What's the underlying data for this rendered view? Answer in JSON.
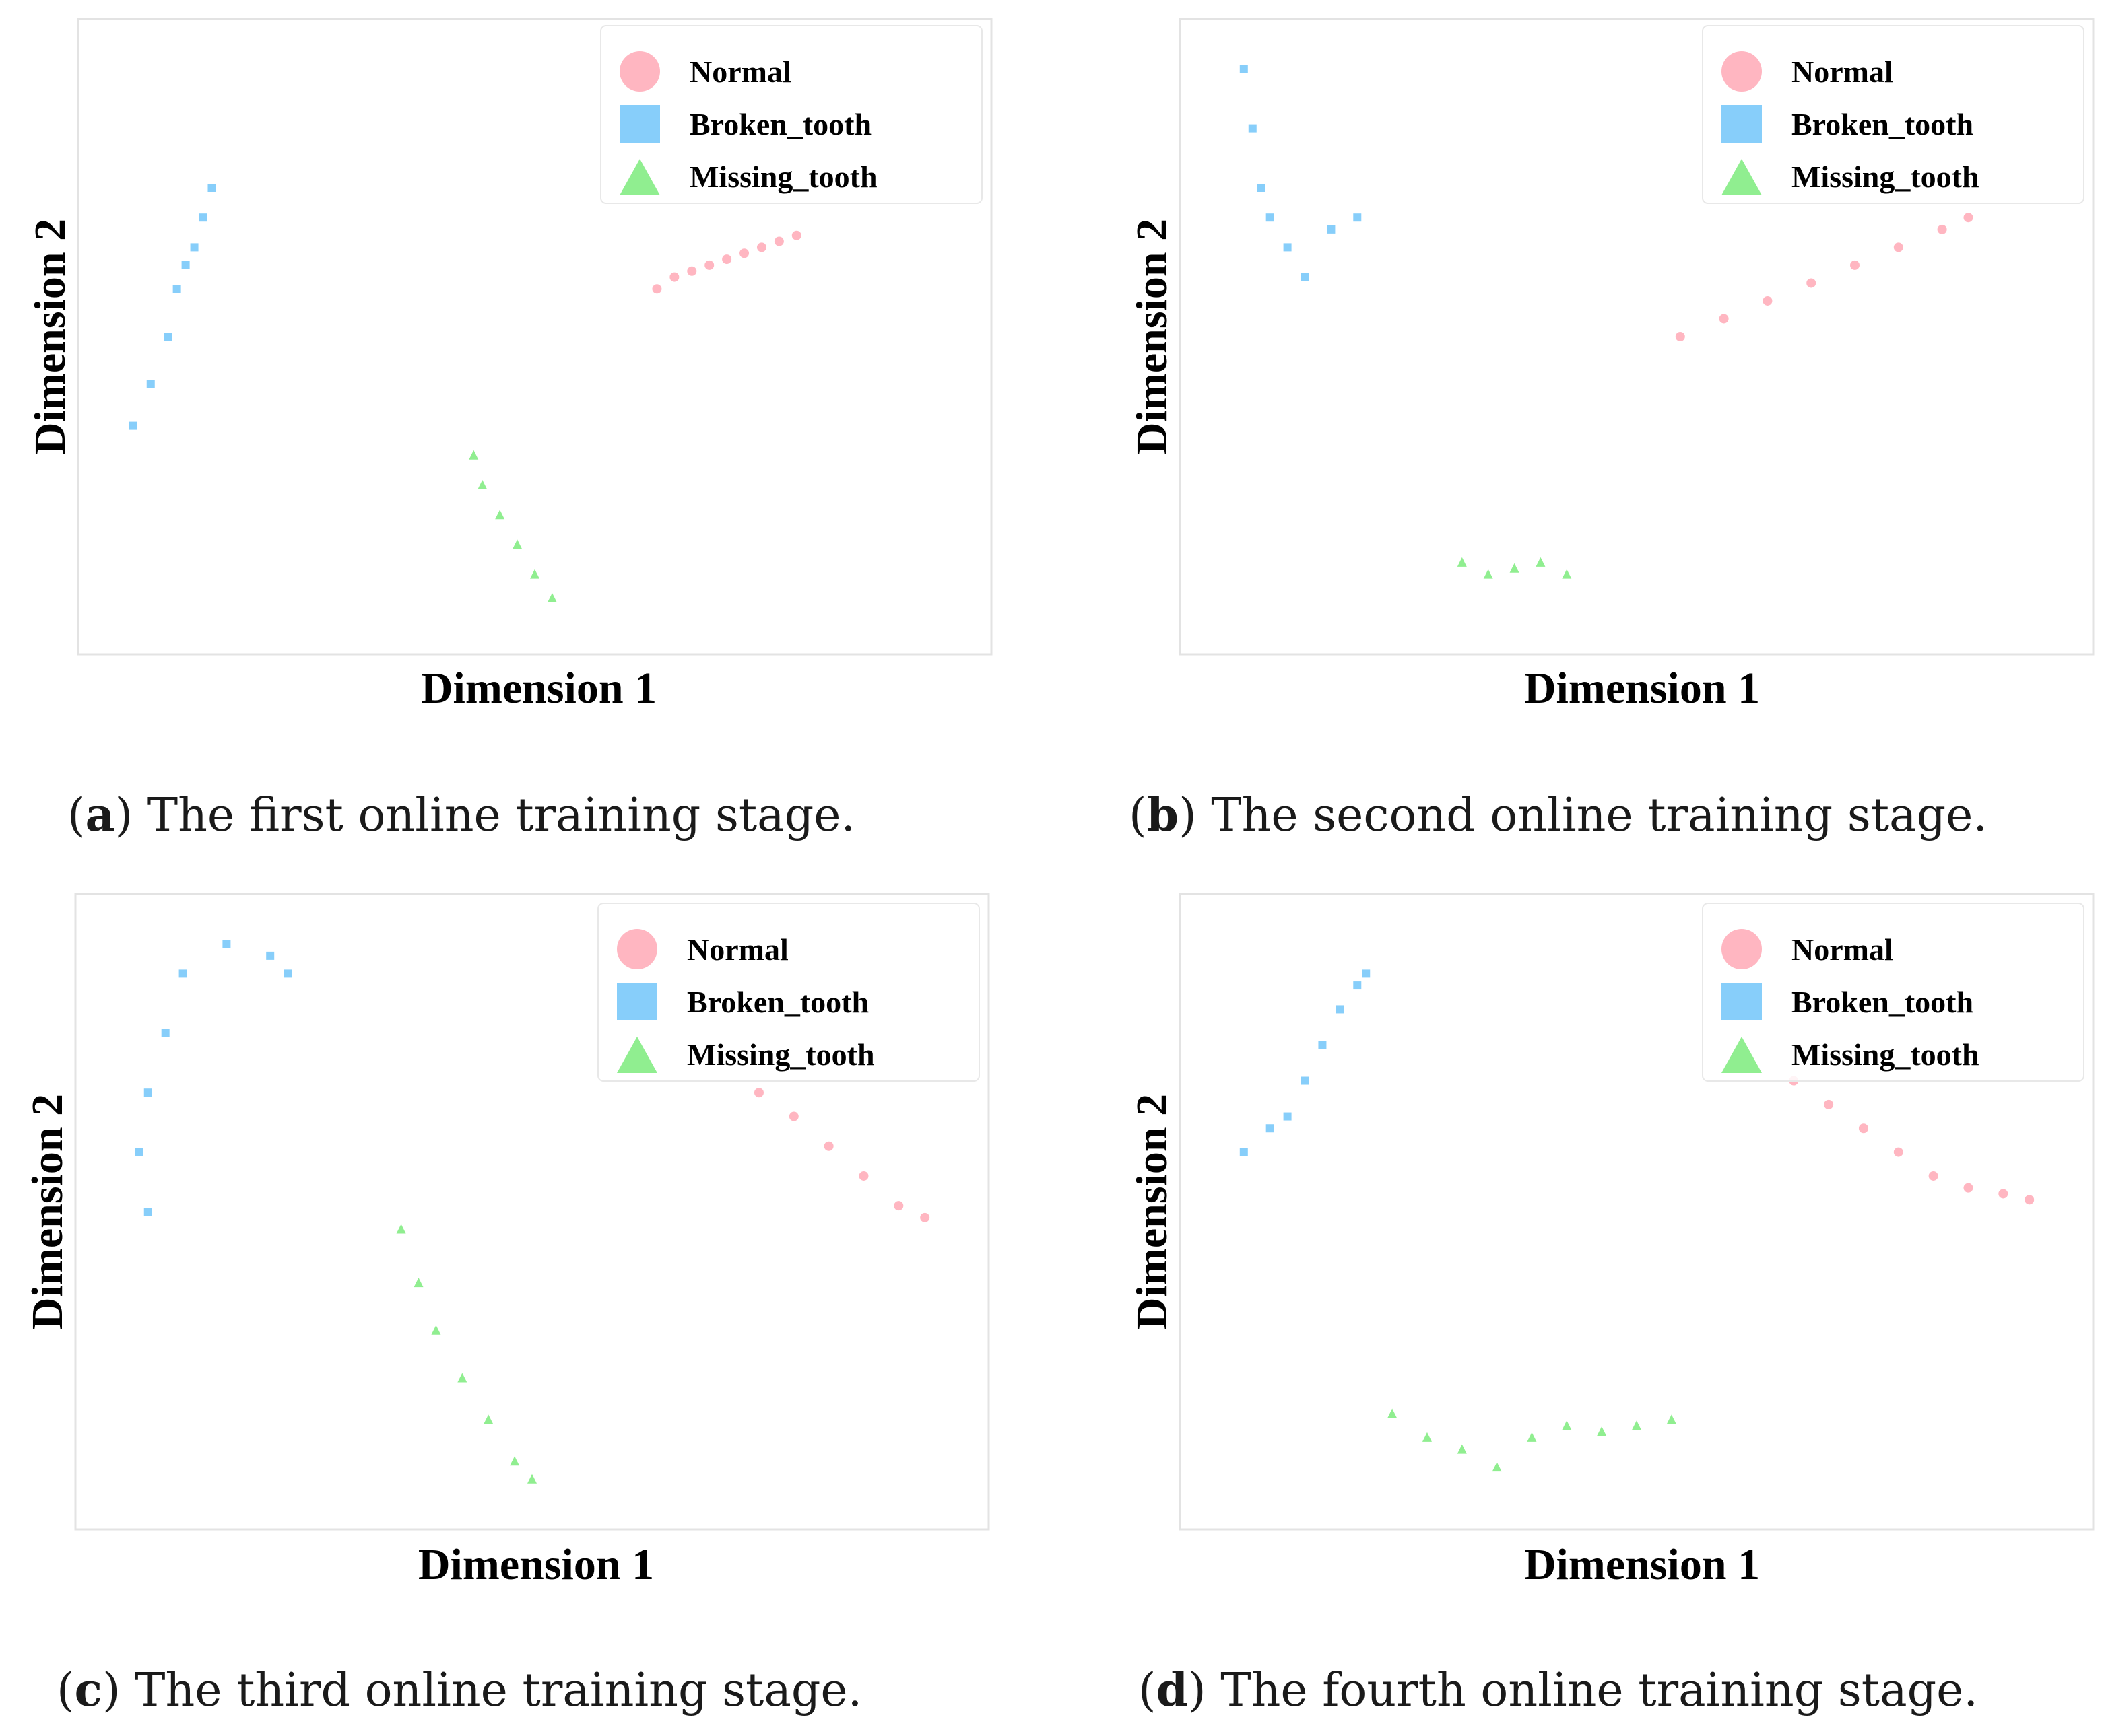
{
  "figure": {
    "panels": [
      {
        "letter": "a",
        "caption": "The first online training stage."
      },
      {
        "letter": "b",
        "caption": "The second online training stage."
      },
      {
        "letter": "c",
        "caption": "The third online training stage."
      },
      {
        "letter": "d",
        "caption": "The fourth online training stage."
      }
    ]
  },
  "chart_data": [
    {
      "type": "scatter",
      "xlabel": "Dimension 1",
      "ylabel": "Dimension 2",
      "grid": false,
      "legend_position": "top-right",
      "legend": [
        "Normal",
        "Broken_tooth",
        "Missing_tooth"
      ],
      "series": [
        {
          "name": "Normal",
          "marker": "circle",
          "color": "#ffb6c1",
          "points": [
            [
              0.64,
              0.58
            ],
            [
              0.66,
              0.6
            ],
            [
              0.68,
              0.61
            ],
            [
              0.7,
              0.62
            ],
            [
              0.72,
              0.63
            ],
            [
              0.74,
              0.64
            ],
            [
              0.76,
              0.65
            ],
            [
              0.78,
              0.66
            ],
            [
              0.8,
              0.67
            ]
          ]
        },
        {
          "name": "Broken_tooth",
          "marker": "square",
          "color": "#87cefa",
          "points": [
            [
              0.04,
              0.35
            ],
            [
              0.06,
              0.42
            ],
            [
              0.08,
              0.5
            ],
            [
              0.09,
              0.58
            ],
            [
              0.1,
              0.62
            ],
            [
              0.11,
              0.65
            ],
            [
              0.12,
              0.7
            ],
            [
              0.13,
              0.75
            ]
          ]
        },
        {
          "name": "Missing_tooth",
          "marker": "triangle",
          "color": "#90ee90",
          "points": [
            [
              0.43,
              0.3
            ],
            [
              0.44,
              0.25
            ],
            [
              0.46,
              0.2
            ],
            [
              0.48,
              0.15
            ],
            [
              0.5,
              0.1
            ],
            [
              0.52,
              0.06
            ]
          ]
        }
      ]
    },
    {
      "type": "scatter",
      "xlabel": "Dimension 1",
      "ylabel": "Dimension 2",
      "grid": false,
      "legend_position": "top-right",
      "legend": [
        "Normal",
        "Broken_tooth",
        "Missing_tooth"
      ],
      "series": [
        {
          "name": "Normal",
          "marker": "circle",
          "color": "#ffb6c1",
          "points": [
            [
              0.55,
              0.5
            ],
            [
              0.6,
              0.53
            ],
            [
              0.65,
              0.56
            ],
            [
              0.7,
              0.59
            ],
            [
              0.75,
              0.62
            ],
            [
              0.8,
              0.65
            ],
            [
              0.85,
              0.68
            ],
            [
              0.88,
              0.7
            ]
          ]
        },
        {
          "name": "Broken_tooth",
          "marker": "square",
          "color": "#87cefa",
          "points": [
            [
              0.05,
              0.95
            ],
            [
              0.06,
              0.85
            ],
            [
              0.07,
              0.75
            ],
            [
              0.08,
              0.7
            ],
            [
              0.1,
              0.65
            ],
            [
              0.12,
              0.6
            ],
            [
              0.15,
              0.68
            ],
            [
              0.18,
              0.7
            ]
          ]
        },
        {
          "name": "Missing_tooth",
          "marker": "triangle",
          "color": "#90ee90",
          "points": [
            [
              0.3,
              0.12
            ],
            [
              0.33,
              0.1
            ],
            [
              0.36,
              0.11
            ],
            [
              0.39,
              0.12
            ],
            [
              0.42,
              0.1
            ]
          ]
        }
      ]
    },
    {
      "type": "scatter",
      "xlabel": "Dimension 1",
      "ylabel": "Dimension 2",
      "grid": false,
      "legend_position": "top-right",
      "legend": [
        "Normal",
        "Broken_tooth",
        "Missing_tooth"
      ],
      "series": [
        {
          "name": "Normal",
          "marker": "circle",
          "color": "#ffb6c1",
          "points": [
            [
              0.76,
              0.7
            ],
            [
              0.8,
              0.66
            ],
            [
              0.84,
              0.61
            ],
            [
              0.88,
              0.56
            ],
            [
              0.92,
              0.51
            ],
            [
              0.95,
              0.49
            ]
          ]
        },
        {
          "name": "Broken_tooth",
          "marker": "square",
          "color": "#87cefa",
          "points": [
            [
              0.06,
              0.5
            ],
            [
              0.05,
              0.6
            ],
            [
              0.06,
              0.7
            ],
            [
              0.08,
              0.8
            ],
            [
              0.1,
              0.9
            ],
            [
              0.15,
              0.95
            ],
            [
              0.2,
              0.93
            ],
            [
              0.22,
              0.9
            ]
          ]
        },
        {
          "name": "Missing_tooth",
          "marker": "triangle",
          "color": "#90ee90",
          "points": [
            [
              0.35,
              0.47
            ],
            [
              0.37,
              0.38
            ],
            [
              0.39,
              0.3
            ],
            [
              0.42,
              0.22
            ],
            [
              0.45,
              0.15
            ],
            [
              0.48,
              0.08
            ],
            [
              0.5,
              0.05
            ]
          ]
        }
      ]
    },
    {
      "type": "scatter",
      "xlabel": "Dimension 1",
      "ylabel": "Dimension 2",
      "grid": false,
      "legend_position": "top-right",
      "legend": [
        "Normal",
        "Broken_tooth",
        "Missing_tooth"
      ],
      "series": [
        {
          "name": "Normal",
          "marker": "circle",
          "color": "#ffb6c1",
          "points": [
            [
              0.68,
              0.72
            ],
            [
              0.72,
              0.68
            ],
            [
              0.76,
              0.64
            ],
            [
              0.8,
              0.6
            ],
            [
              0.84,
              0.56
            ],
            [
              0.88,
              0.54
            ],
            [
              0.92,
              0.53
            ],
            [
              0.95,
              0.52
            ]
          ]
        },
        {
          "name": "Broken_tooth",
          "marker": "square",
          "color": "#87cefa",
          "points": [
            [
              0.05,
              0.6
            ],
            [
              0.08,
              0.64
            ],
            [
              0.1,
              0.66
            ],
            [
              0.12,
              0.72
            ],
            [
              0.14,
              0.78
            ],
            [
              0.16,
              0.84
            ],
            [
              0.18,
              0.88
            ],
            [
              0.19,
              0.9
            ]
          ]
        },
        {
          "name": "Missing_tooth",
          "marker": "triangle",
          "color": "#90ee90",
          "points": [
            [
              0.22,
              0.16
            ],
            [
              0.26,
              0.12
            ],
            [
              0.3,
              0.1
            ],
            [
              0.34,
              0.07
            ],
            [
              0.38,
              0.12
            ],
            [
              0.42,
              0.14
            ],
            [
              0.46,
              0.13
            ],
            [
              0.5,
              0.14
            ],
            [
              0.54,
              0.15
            ]
          ]
        }
      ]
    }
  ]
}
